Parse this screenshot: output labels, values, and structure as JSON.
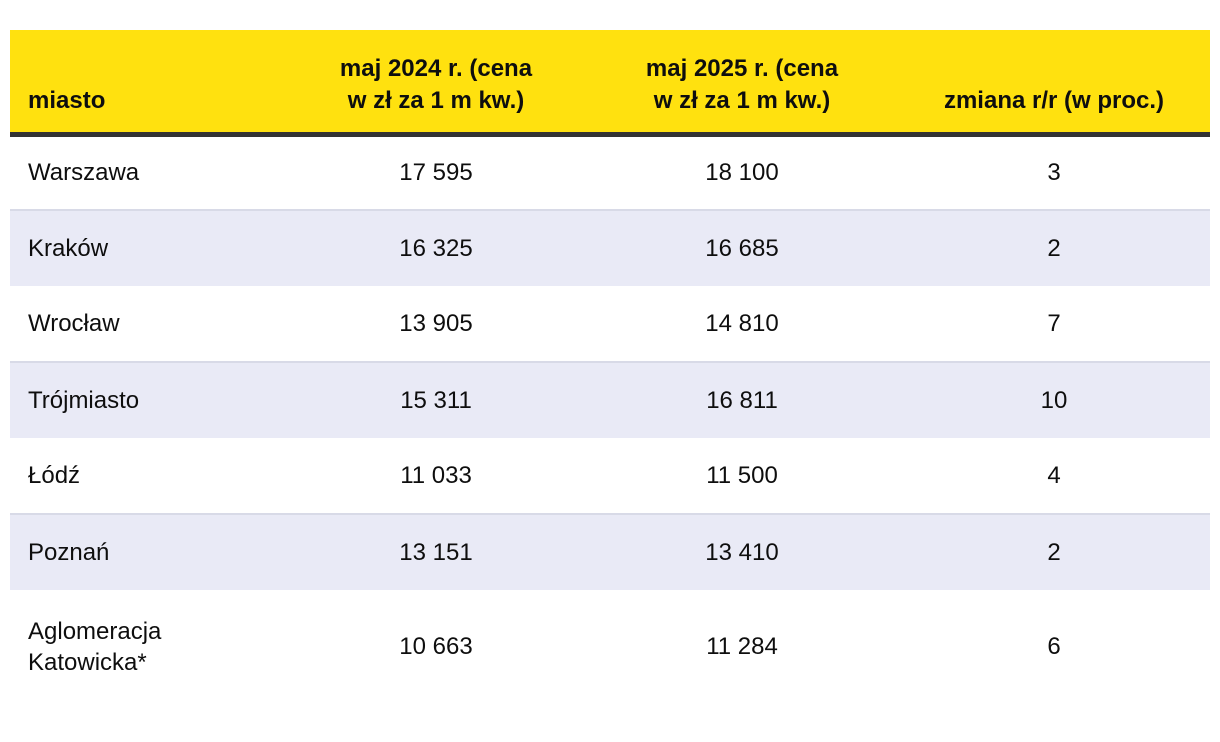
{
  "chart_data": {
    "type": "table",
    "title": "",
    "columns": [
      "miasto",
      "maj 2024 r. (cena\nw zł za 1 m kw.)",
      "maj 2025 r. (cena\nw zł za 1 m kw.)",
      "zmiana r/r (w proc.)"
    ],
    "rows": [
      {
        "city": "Warszawa",
        "may_2024": "17 595",
        "may_2025": "18 100",
        "change_yoy": "3"
      },
      {
        "city": "Kraków",
        "may_2024": "16 325",
        "may_2025": "16 685",
        "change_yoy": "2"
      },
      {
        "city": "Wrocław",
        "may_2024": "13 905",
        "may_2025": "14 810",
        "change_yoy": "7"
      },
      {
        "city": "Trójmiasto",
        "may_2024": "15 311",
        "may_2025": "16 811",
        "change_yoy": "10"
      },
      {
        "city": "Łódź",
        "may_2024": "11 033",
        "may_2025": "11 500",
        "change_yoy": "4"
      },
      {
        "city": "Poznań",
        "may_2024": "13 151",
        "may_2025": "13 410",
        "change_yoy": "2"
      },
      {
        "city": "Aglomeracja\nKatowicka*",
        "may_2024": "10 663",
        "may_2025": "11 284",
        "change_yoy": "6"
      }
    ],
    "footnote_marker": "*",
    "layout": {
      "alternating_rows": true,
      "header_position": "top"
    }
  },
  "colors": {
    "header_bg": "#ffe10f",
    "divider": "#333333",
    "row_alt_bg": "#e9eaf6",
    "row_alt_border": "#d8dae7",
    "text": "#0e0e0e",
    "page_bg": "#ffffff"
  }
}
